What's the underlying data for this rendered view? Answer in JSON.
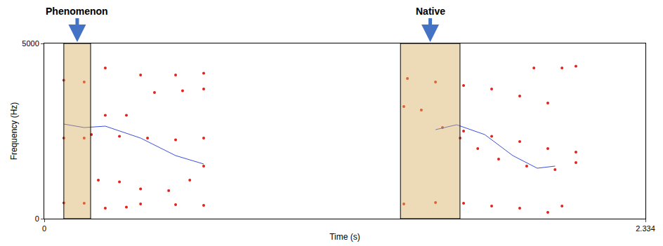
{
  "chart_data": {
    "type": "scatter",
    "xlabel": "Time (s)",
    "ylabel": "Frequency (Hz)",
    "xlim": [
      0,
      2.334
    ],
    "ylim": [
      0,
      5000
    ],
    "xticks": [
      0,
      2.334
    ],
    "yticks": [
      0,
      5000
    ],
    "grid": false,
    "highlights": [
      {
        "label": "Phenomenon",
        "start": 0.076,
        "end": 0.18
      },
      {
        "label": "Native",
        "start": 1.383,
        "end": 1.614
      }
    ],
    "series": [
      {
        "type": "scatter",
        "marker": "circle",
        "color": "#e8201a",
        "x": [
          0.076,
          0.155,
          0.237,
          0.319,
          0.374,
          0.51,
          0.619
        ],
        "values": [
          450,
          440,
          300,
          330,
          420,
          400,
          380
        ]
      },
      {
        "type": "scatter",
        "marker": "circle",
        "color": "#e8201a",
        "x": [
          0.076,
          0.155,
          0.21,
          0.292,
          0.374,
          0.483,
          0.565,
          0.619
        ],
        "values": [
          2300,
          2300,
          1100,
          1050,
          850,
          800,
          1100,
          1500
        ]
      },
      {
        "type": "scatter",
        "marker": "circle",
        "color": "#e8201a",
        "x": [
          0.183,
          0.292,
          0.401,
          0.51,
          0.619
        ],
        "values": [
          2400,
          2350,
          2300,
          2250,
          2300
        ]
      },
      {
        "type": "scatter",
        "marker": "circle",
        "color": "#e8201a",
        "x": [
          0.076,
          0.155,
          0.237,
          0.319,
          0.428,
          0.537,
          0.619
        ],
        "values": [
          3950,
          3900,
          2950,
          2950,
          3600,
          3650,
          3700
        ]
      },
      {
        "type": "scatter",
        "marker": "circle",
        "color": "#e8201a",
        "x": [
          0.237,
          0.374,
          0.51,
          0.619
        ],
        "values": [
          4300,
          4100,
          4100,
          4150
        ]
      },
      {
        "type": "scatter",
        "marker": "circle",
        "color": "#e8201a",
        "x": [
          1.396,
          1.519,
          1.628,
          1.737,
          1.846,
          1.955,
          2.01
        ],
        "values": [
          420,
          460,
          440,
          360,
          300,
          180,
          360
        ]
      },
      {
        "type": "scatter",
        "marker": "circle",
        "color": "#e8201a",
        "x": [
          1.396,
          1.464,
          1.546,
          1.614,
          1.683,
          1.764,
          1.873,
          1.983,
          2.064
        ],
        "values": [
          3200,
          3100,
          2600,
          2300,
          2000,
          1700,
          1500,
          1400,
          1600
        ]
      },
      {
        "type": "scatter",
        "marker": "circle",
        "color": "#e8201a",
        "x": [
          1.628,
          1.737,
          1.846,
          1.955,
          2.064
        ],
        "values": [
          2500,
          2350,
          2200,
          2000,
          1900
        ]
      },
      {
        "type": "scatter",
        "marker": "circle",
        "color": "#e8201a",
        "x": [
          1.41,
          1.519,
          1.628,
          1.737,
          1.846,
          1.955
        ],
        "values": [
          4000,
          3900,
          3800,
          3700,
          3500,
          3300
        ]
      },
      {
        "type": "scatter",
        "marker": "circle",
        "color": "#e8201a",
        "x": [
          1.901,
          2.01,
          2.064
        ],
        "values": [
          4300,
          4300,
          4350
        ]
      },
      {
        "type": "line",
        "line_style": "solid",
        "color": "#3b4fd8",
        "x": [
          0.076,
          0.155,
          0.237,
          0.374,
          0.51,
          0.619
        ],
        "values": [
          2700,
          2600,
          2640,
          2300,
          1800,
          1560
        ]
      },
      {
        "type": "line",
        "line_style": "solid",
        "color": "#3b4fd8",
        "x": [
          1.519,
          1.601,
          1.71,
          1.819,
          1.914,
          1.983
        ],
        "values": [
          2540,
          2680,
          2400,
          1800,
          1440,
          1500
        ]
      }
    ]
  }
}
